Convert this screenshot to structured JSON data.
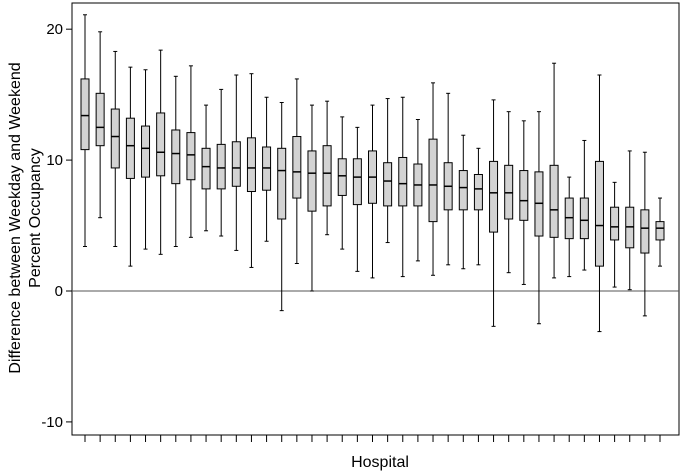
{
  "chart_data": {
    "type": "boxplot",
    "title": "",
    "xlabel": "Hospital",
    "ylabel_lines": [
      "Difference between Weekday and Weekend",
      "Percent Occupancy"
    ],
    "ylim": [
      -11,
      22
    ],
    "yticks": [
      -10,
      0,
      10,
      20
    ],
    "ytick_labels": [
      "-10",
      "0",
      "10",
      "20"
    ],
    "reference_line": 0,
    "box_color": "#d3d3d3",
    "grid": false,
    "boxes": [
      {
        "min": 3.4,
        "q1": 10.8,
        "median": 13.4,
        "q3": 16.2,
        "max": 21.1
      },
      {
        "min": 5.6,
        "q1": 11.1,
        "median": 12.5,
        "q3": 15.1,
        "max": 19.8
      },
      {
        "min": 3.4,
        "q1": 9.4,
        "median": 11.8,
        "q3": 13.9,
        "max": 18.3
      },
      {
        "min": 1.9,
        "q1": 8.6,
        "median": 11.1,
        "q3": 13.2,
        "max": 17.1
      },
      {
        "min": 3.2,
        "q1": 8.7,
        "median": 10.9,
        "q3": 12.6,
        "max": 16.9
      },
      {
        "min": 2.8,
        "q1": 8.8,
        "median": 10.6,
        "q3": 13.6,
        "max": 18.4
      },
      {
        "min": 3.4,
        "q1": 8.2,
        "median": 10.5,
        "q3": 12.3,
        "max": 16.4
      },
      {
        "min": 4.1,
        "q1": 8.5,
        "median": 10.4,
        "q3": 12.1,
        "max": 17.2
      },
      {
        "min": 4.6,
        "q1": 7.8,
        "median": 9.5,
        "q3": 10.9,
        "max": 14.2
      },
      {
        "min": 4.2,
        "q1": 7.8,
        "median": 9.4,
        "q3": 11.2,
        "max": 15.4
      },
      {
        "min": 3.1,
        "q1": 8.0,
        "median": 9.4,
        "q3": 11.4,
        "max": 16.5
      },
      {
        "min": 1.8,
        "q1": 7.6,
        "median": 9.4,
        "q3": 11.7,
        "max": 16.6
      },
      {
        "min": 3.8,
        "q1": 7.7,
        "median": 9.4,
        "q3": 11.0,
        "max": 14.8
      },
      {
        "min": -1.5,
        "q1": 5.5,
        "median": 9.2,
        "q3": 10.9,
        "max": 14.4
      },
      {
        "min": 2.1,
        "q1": 7.1,
        "median": 9.1,
        "q3": 11.8,
        "max": 16.2
      },
      {
        "min": 0.0,
        "q1": 6.1,
        "median": 9.0,
        "q3": 10.7,
        "max": 14.2
      },
      {
        "min": 4.3,
        "q1": 6.5,
        "median": 9.0,
        "q3": 11.1,
        "max": 14.5
      },
      {
        "min": 3.2,
        "q1": 7.3,
        "median": 8.8,
        "q3": 10.1,
        "max": 13.3
      },
      {
        "min": 1.5,
        "q1": 6.6,
        "median": 8.7,
        "q3": 10.1,
        "max": 12.5
      },
      {
        "min": 1.0,
        "q1": 6.7,
        "median": 8.7,
        "q3": 10.7,
        "max": 14.2
      },
      {
        "min": 3.7,
        "q1": 6.5,
        "median": 8.4,
        "q3": 9.8,
        "max": 14.7
      },
      {
        "min": 1.1,
        "q1": 6.5,
        "median": 8.2,
        "q3": 10.2,
        "max": 14.8
      },
      {
        "min": 2.3,
        "q1": 6.5,
        "median": 8.1,
        "q3": 9.7,
        "max": 13.1
      },
      {
        "min": 1.2,
        "q1": 5.3,
        "median": 8.1,
        "q3": 11.6,
        "max": 15.9
      },
      {
        "min": 2.0,
        "q1": 6.2,
        "median": 8.0,
        "q3": 9.8,
        "max": 15.1
      },
      {
        "min": 1.7,
        "q1": 6.2,
        "median": 7.9,
        "q3": 9.2,
        "max": 11.9
      },
      {
        "min": 2.0,
        "q1": 6.2,
        "median": 7.8,
        "q3": 8.9,
        "max": 10.9
      },
      {
        "min": -2.7,
        "q1": 4.5,
        "median": 7.5,
        "q3": 9.9,
        "max": 14.6
      },
      {
        "min": 1.4,
        "q1": 5.5,
        "median": 7.5,
        "q3": 9.6,
        "max": 13.7
      },
      {
        "min": 0.5,
        "q1": 5.4,
        "median": 6.9,
        "q3": 9.2,
        "max": 13.0
      },
      {
        "min": -2.5,
        "q1": 4.2,
        "median": 6.7,
        "q3": 9.1,
        "max": 13.7
      },
      {
        "min": 1.0,
        "q1": 4.1,
        "median": 6.2,
        "q3": 9.6,
        "max": 17.4
      },
      {
        "min": 1.1,
        "q1": 4.0,
        "median": 5.6,
        "q3": 7.1,
        "max": 8.7
      },
      {
        "min": 1.6,
        "q1": 4.0,
        "median": 5.4,
        "q3": 7.1,
        "max": 11.5
      },
      {
        "min": -3.1,
        "q1": 1.9,
        "median": 5.0,
        "q3": 9.9,
        "max": 16.5
      },
      {
        "min": 0.3,
        "q1": 3.9,
        "median": 4.9,
        "q3": 6.4,
        "max": 8.3
      },
      {
        "min": 0.1,
        "q1": 3.3,
        "median": 4.9,
        "q3": 6.4,
        "max": 10.7
      },
      {
        "min": -1.9,
        "q1": 2.9,
        "median": 4.8,
        "q3": 6.2,
        "max": 10.6
      },
      {
        "min": 1.9,
        "q1": 3.9,
        "median": 4.8,
        "q3": 5.3,
        "max": 7.1
      }
    ]
  }
}
